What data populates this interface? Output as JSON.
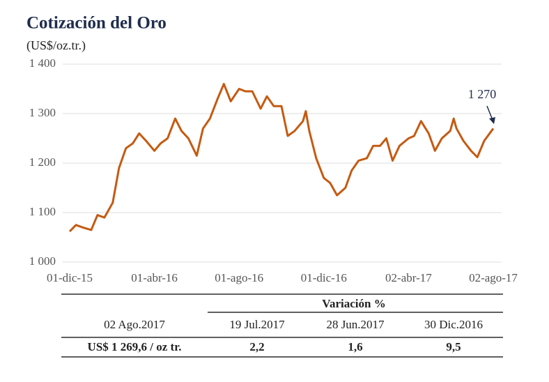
{
  "chart_data": {
    "type": "line",
    "title": "Cotización del Oro",
    "subtitle": "(US$/oz.tr.)",
    "annotation": "1 270",
    "x": [
      "2015-12-01",
      "2015-12-10",
      "2015-12-20",
      "2016-01-01",
      "2016-01-10",
      "2016-01-20",
      "2016-02-01",
      "2016-02-10",
      "2016-02-20",
      "2016-03-01",
      "2016-03-10",
      "2016-03-20",
      "2016-04-01",
      "2016-04-10",
      "2016-04-20",
      "2016-05-01",
      "2016-05-10",
      "2016-05-20",
      "2016-06-01",
      "2016-06-10",
      "2016-06-20",
      "2016-07-01",
      "2016-07-10",
      "2016-07-20",
      "2016-08-01",
      "2016-08-10",
      "2016-08-20",
      "2016-09-01",
      "2016-09-10",
      "2016-09-20",
      "2016-10-01",
      "2016-10-10",
      "2016-10-20",
      "2016-11-01",
      "2016-11-05",
      "2016-11-10",
      "2016-11-20",
      "2016-12-01",
      "2016-12-10",
      "2016-12-20",
      "2017-01-01",
      "2017-01-10",
      "2017-01-20",
      "2017-02-01",
      "2017-02-10",
      "2017-02-20",
      "2017-03-01",
      "2017-03-10",
      "2017-03-20",
      "2017-04-02",
      "2017-04-10",
      "2017-04-20",
      "2017-05-01",
      "2017-05-10",
      "2017-05-20",
      "2017-06-01",
      "2017-06-06",
      "2017-06-10",
      "2017-06-20",
      "2017-07-01",
      "2017-07-10",
      "2017-07-20",
      "2017-08-02"
    ],
    "series": [
      {
        "name": "Oro",
        "color": "#c55a11",
        "values": [
          1062,
          1075,
          1070,
          1065,
          1095,
          1090,
          1120,
          1190,
          1230,
          1240,
          1260,
          1245,
          1225,
          1240,
          1250,
          1290,
          1265,
          1250,
          1215,
          1270,
          1290,
          1330,
          1360,
          1325,
          1350,
          1345,
          1345,
          1310,
          1335,
          1315,
          1315,
          1255,
          1265,
          1285,
          1305,
          1265,
          1210,
          1170,
          1160,
          1135,
          1150,
          1185,
          1205,
          1210,
          1235,
          1235,
          1250,
          1205,
          1235,
          1250,
          1255,
          1285,
          1260,
          1225,
          1250,
          1265,
          1290,
          1270,
          1245,
          1225,
          1212,
          1245,
          1270
        ]
      }
    ],
    "xlim": [
      "2015-12-01",
      "2017-08-02"
    ],
    "xticks": [
      {
        "value": "2015-12-01",
        "label": "01-dic-15"
      },
      {
        "value": "2016-04-01",
        "label": "01-abr-16"
      },
      {
        "value": "2016-08-01",
        "label": "01-ago-16"
      },
      {
        "value": "2016-12-01",
        "label": "01-dic-16"
      },
      {
        "value": "2017-04-02",
        "label": "02-abr-17"
      },
      {
        "value": "2017-08-02",
        "label": "02-ago-17"
      }
    ],
    "ylim": [
      1000,
      1400
    ],
    "yticks": [
      {
        "value": 1000,
        "label": "1 000"
      },
      {
        "value": 1100,
        "label": "1 100"
      },
      {
        "value": 1200,
        "label": "1 200"
      },
      {
        "value": 1300,
        "label": "1 300"
      },
      {
        "value": 1400,
        "label": "1 400"
      }
    ],
    "grid": true
  },
  "table": {
    "group_header": "Variación %",
    "columns": [
      "02 Ago.2017",
      "19 Jul.2017",
      "28 Jun.2017",
      "30 Dic.2016"
    ],
    "row": [
      "US$ 1 269,6 / oz tr.",
      "2,2",
      "1,6",
      "9,5"
    ]
  }
}
